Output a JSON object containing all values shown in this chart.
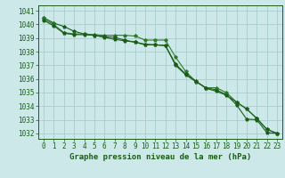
{
  "title": "Graphe pression niveau de la mer (hPa)",
  "hours": [
    0,
    1,
    2,
    3,
    4,
    5,
    6,
    7,
    8,
    9,
    10,
    11,
    12,
    13,
    14,
    15,
    16,
    17,
    18,
    19,
    20,
    21,
    22,
    23
  ],
  "line1": [
    1040.5,
    1040.1,
    1039.85,
    1039.5,
    1039.3,
    1039.2,
    1039.05,
    1038.9,
    1038.8,
    1038.7,
    1038.55,
    1038.5,
    1038.45,
    1037.0,
    1036.3,
    1035.8,
    1035.35,
    1035.2,
    1034.85,
    1034.1,
    1033.05,
    1033.0,
    1032.05,
    1032.0
  ],
  "line2": [
    1040.4,
    1040.0,
    1039.4,
    1039.3,
    1039.3,
    1039.25,
    1039.2,
    1039.2,
    1039.2,
    1039.15,
    1038.85,
    1038.85,
    1038.85,
    1037.6,
    1036.55,
    1035.8,
    1035.35,
    1035.35,
    1035.0,
    1034.3,
    1033.8,
    1033.1,
    1032.3,
    1032.0
  ],
  "line3": [
    1040.3,
    1039.9,
    1039.35,
    1039.25,
    1039.25,
    1039.2,
    1039.1,
    1039.05,
    1038.85,
    1038.7,
    1038.5,
    1038.5,
    1038.45,
    1037.1,
    1036.35,
    1035.85,
    1035.3,
    1035.1,
    1034.8,
    1034.3,
    1033.8,
    1033.1,
    1032.3,
    1032.0
  ],
  "bg_color": "#cce8e8",
  "grid_color": "#aacccc",
  "line_color_dark": "#1a5c1a",
  "line_color_mid": "#2d7a2d",
  "ylim_min": 1031.6,
  "ylim_max": 1041.4,
  "yticks": [
    1032,
    1033,
    1034,
    1035,
    1036,
    1037,
    1038,
    1039,
    1040,
    1041
  ],
  "title_color": "#1a5c1a",
  "title_fontsize": 6.5,
  "tick_fontsize": 5.5
}
